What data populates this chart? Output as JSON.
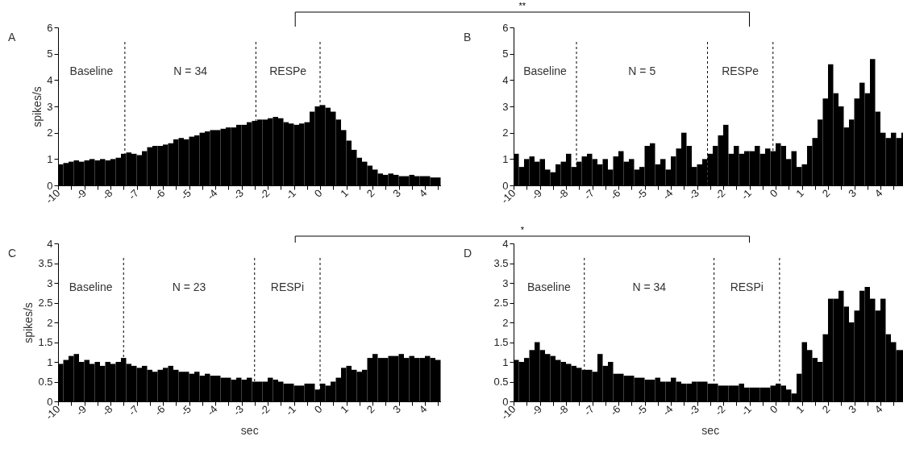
{
  "chart_data": [
    {
      "type": "histogram",
      "title": "A",
      "ylabel": "spikes/s",
      "color": "#000000",
      "xlim": [
        -10,
        4.6
      ],
      "ylim": [
        0,
        6
      ],
      "yticks": [
        0,
        1,
        2,
        3,
        4,
        5,
        6
      ],
      "xticks": [
        -10,
        {
          "value": -9.5,
          "label": null
        },
        -9,
        {
          "value": -8.5,
          "label": null
        },
        -8,
        {
          "value": -7.5,
          "label": null
        },
        -7,
        {
          "value": -6.5,
          "label": null
        },
        -6,
        {
          "value": -5.5,
          "label": null
        },
        -5,
        {
          "value": -4.5,
          "label": null
        },
        -4,
        {
          "value": -3.5,
          "label": null
        },
        -3,
        {
          "value": -2.5,
          "label": null
        },
        -2,
        {
          "value": -1.5,
          "label": null
        },
        -1,
        {
          "value": -0.5,
          "label": null
        },
        0,
        {
          "value": 0.5,
          "label": null
        },
        1,
        {
          "value": 1.5,
          "label": null
        },
        2,
        {
          "value": 2.5,
          "label": null
        },
        3,
        {
          "value": 3.5,
          "label": null
        },
        4,
        {
          "value": 4.5,
          "label": null
        }
      ],
      "bins": [
        -10,
        -9.8,
        -9.6,
        -9.4,
        -9.2,
        -9,
        -8.8,
        -8.6,
        -8.4,
        -8.2,
        -8,
        -7.8,
        -7.6,
        -7.4,
        -7.2,
        -7,
        -6.8,
        -6.6,
        -6.4,
        -6.2,
        -6,
        -5.8,
        -5.6,
        -5.4,
        -5.2,
        -5,
        -4.8,
        -4.6,
        -4.4,
        -4.2,
        -4,
        -3.8,
        -3.6,
        -3.4,
        -3.2,
        -3,
        -2.8,
        -2.6,
        -2.4,
        -2.2,
        -2,
        -1.8,
        -1.6,
        -1.4,
        -1.2,
        -1,
        -0.8,
        -0.6,
        -0.4,
        -0.2,
        0,
        0.2,
        0.4,
        0.6,
        0.8,
        1,
        1.2,
        1.4,
        1.6,
        1.8,
        2,
        2.2,
        2.4,
        2.6,
        2.8,
        3,
        3.2,
        3.4,
        3.6,
        3.8,
        4,
        4.2,
        4.4,
        4.6
      ],
      "values": [
        0.8,
        0.85,
        0.9,
        0.95,
        0.9,
        0.95,
        1.0,
        0.95,
        1.0,
        0.95,
        1.0,
        1.05,
        1.2,
        1.25,
        1.2,
        1.15,
        1.3,
        1.45,
        1.5,
        1.5,
        1.55,
        1.6,
        1.75,
        1.8,
        1.75,
        1.85,
        1.9,
        2.0,
        2.05,
        2.1,
        2.1,
        2.15,
        2.2,
        2.2,
        2.3,
        2.3,
        2.4,
        2.45,
        2.5,
        2.5,
        2.55,
        2.6,
        2.55,
        2.4,
        2.35,
        2.3,
        2.35,
        2.4,
        2.8,
        3.0,
        3.05,
        2.95,
        2.8,
        2.5,
        2.1,
        1.7,
        1.35,
        1.05,
        0.9,
        0.75,
        0.6,
        0.45,
        0.4,
        0.45,
        0.4,
        0.35,
        0.35,
        0.4,
        0.35,
        0.35,
        0.35,
        0.3,
        0.3
      ],
      "ref_lines": [
        {
          "axis": "x",
          "value": -7.45,
          "line_style": "dashed"
        },
        {
          "axis": "x",
          "value": -2.45,
          "line_style": "dashed"
        },
        {
          "axis": "x",
          "value": 0,
          "line_style": "dashed"
        }
      ],
      "annotations": [
        "Baseline",
        "N = 34",
        "RESPe",
        "**"
      ]
    },
    {
      "type": "histogram",
      "title": "B",
      "color": "#000000",
      "xlim": [
        -10,
        5
      ],
      "ylim": [
        0,
        6
      ],
      "yticks": [
        0,
        1,
        2,
        3,
        4,
        5,
        6
      ],
      "xticks": [
        -10,
        {
          "value": -9.5,
          "label": null
        },
        -9,
        {
          "value": -8.5,
          "label": null
        },
        -8,
        {
          "value": -7.5,
          "label": null
        },
        -7,
        {
          "value": -6.5,
          "label": null
        },
        -6,
        {
          "value": -5.5,
          "label": null
        },
        -5,
        {
          "value": -4.5,
          "label": null
        },
        -4,
        {
          "value": -3.5,
          "label": null
        },
        -3,
        {
          "value": -2.5,
          "label": null
        },
        -2,
        {
          "value": -1.5,
          "label": null
        },
        -1,
        {
          "value": -0.5,
          "label": null
        },
        0,
        {
          "value": 0.5,
          "label": null
        },
        1,
        {
          "value": 1.5,
          "label": null
        },
        2,
        {
          "value": 2.5,
          "label": null
        },
        3,
        {
          "value": 3.5,
          "label": null
        },
        4,
        {
          "value": 4.5,
          "label": null
        }
      ],
      "bins": [
        -10,
        -9.8,
        -9.6,
        -9.4,
        -9.2,
        -9,
        -8.8,
        -8.6,
        -8.4,
        -8.2,
        -8,
        -7.8,
        -7.6,
        -7.4,
        -7.2,
        -7,
        -6.8,
        -6.6,
        -6.4,
        -6.2,
        -6,
        -5.8,
        -5.6,
        -5.4,
        -5.2,
        -5,
        -4.8,
        -4.6,
        -4.4,
        -4.2,
        -4,
        -3.8,
        -3.6,
        -3.4,
        -3.2,
        -3,
        -2.8,
        -2.6,
        -2.4,
        -2.2,
        -2,
        -1.8,
        -1.6,
        -1.4,
        -1.2,
        -1,
        -0.8,
        -0.6,
        -0.4,
        -0.2,
        0,
        0.2,
        0.4,
        0.6,
        0.8,
        1,
        1.2,
        1.4,
        1.6,
        1.8,
        2,
        2.2,
        2.4,
        2.6,
        2.8,
        3,
        3.2,
        3.4,
        3.6,
        3.8,
        4,
        4.2,
        4.4,
        4.6,
        4.8,
        5
      ],
      "values": [
        1.2,
        0.7,
        1.0,
        1.1,
        0.9,
        1.0,
        0.6,
        0.5,
        0.8,
        0.9,
        1.2,
        0.7,
        0.9,
        1.1,
        1.2,
        1.0,
        0.8,
        1.0,
        0.6,
        1.1,
        1.3,
        0.9,
        1.0,
        0.6,
        0.7,
        1.5,
        1.6,
        0.8,
        1.0,
        0.6,
        1.1,
        1.4,
        2.0,
        1.5,
        0.7,
        0.8,
        1.0,
        1.2,
        1.5,
        1.9,
        2.3,
        1.2,
        1.5,
        1.2,
        1.3,
        1.3,
        1.5,
        1.2,
        1.4,
        1.3,
        1.6,
        1.5,
        1.0,
        1.3,
        0.7,
        0.8,
        1.5,
        1.8,
        2.5,
        3.3,
        4.6,
        3.5,
        3.0,
        2.2,
        2.5,
        3.3,
        3.9,
        3.5,
        4.8,
        2.8,
        2.0,
        1.8,
        2.0,
        1.8,
        2.0
      ],
      "ref_lines": [
        {
          "axis": "x",
          "value": -7.6,
          "line_style": "dashed"
        },
        {
          "axis": "x",
          "value": -2.6,
          "line_style": "dashed"
        },
        {
          "axis": "x",
          "value": -0.1,
          "line_style": "dashed"
        }
      ],
      "annotations": [
        "Baseline",
        "N = 5",
        "RESPe"
      ]
    },
    {
      "type": "histogram",
      "title": "C",
      "ylabel": "spikes/s",
      "xlabel": "sec",
      "color": "#000000",
      "xlim": [
        -10,
        4.6
      ],
      "ylim": [
        0,
        4
      ],
      "yticks": [
        0,
        0.5,
        1,
        1.5,
        2,
        2.5,
        3,
        3.5,
        4
      ],
      "xticks": [
        -10,
        {
          "value": -9.5,
          "label": null
        },
        -9,
        {
          "value": -8.5,
          "label": null
        },
        -8,
        {
          "value": -7.5,
          "label": null
        },
        -7,
        {
          "value": -6.5,
          "label": null
        },
        -6,
        {
          "value": -5.5,
          "label": null
        },
        -5,
        {
          "value": -4.5,
          "label": null
        },
        -4,
        {
          "value": -3.5,
          "label": null
        },
        -3,
        {
          "value": -2.5,
          "label": null
        },
        -2,
        {
          "value": -1.5,
          "label": null
        },
        -1,
        {
          "value": -0.5,
          "label": null
        },
        0,
        {
          "value": 0.5,
          "label": null
        },
        1,
        {
          "value": 1.5,
          "label": null
        },
        2,
        {
          "value": 2.5,
          "label": null
        },
        3,
        {
          "value": 3.5,
          "label": null
        },
        4,
        {
          "value": 4.5,
          "label": null
        }
      ],
      "bins": [
        -10,
        -9.8,
        -9.6,
        -9.4,
        -9.2,
        -9,
        -8.8,
        -8.6,
        -8.4,
        -8.2,
        -8,
        -7.8,
        -7.6,
        -7.4,
        -7.2,
        -7,
        -6.8,
        -6.6,
        -6.4,
        -6.2,
        -6,
        -5.8,
        -5.6,
        -5.4,
        -5.2,
        -5,
        -4.8,
        -4.6,
        -4.4,
        -4.2,
        -4,
        -3.8,
        -3.6,
        -3.4,
        -3.2,
        -3,
        -2.8,
        -2.6,
        -2.4,
        -2.2,
        -2,
        -1.8,
        -1.6,
        -1.4,
        -1.2,
        -1,
        -0.8,
        -0.6,
        -0.4,
        -0.2,
        0,
        0.2,
        0.4,
        0.6,
        0.8,
        1,
        1.2,
        1.4,
        1.6,
        1.8,
        2,
        2.2,
        2.4,
        2.6,
        2.8,
        3,
        3.2,
        3.4,
        3.6,
        3.8,
        4,
        4.2,
        4.4,
        4.6
      ],
      "values": [
        0.95,
        1.05,
        1.15,
        1.2,
        1.0,
        1.05,
        0.95,
        1.0,
        0.9,
        1.0,
        0.95,
        1.0,
        1.1,
        0.95,
        0.9,
        0.85,
        0.9,
        0.8,
        0.75,
        0.8,
        0.85,
        0.9,
        0.8,
        0.75,
        0.75,
        0.7,
        0.75,
        0.65,
        0.7,
        0.65,
        0.65,
        0.6,
        0.6,
        0.55,
        0.6,
        0.55,
        0.6,
        0.5,
        0.5,
        0.5,
        0.6,
        0.55,
        0.5,
        0.45,
        0.45,
        0.4,
        0.4,
        0.45,
        0.45,
        0.3,
        0.45,
        0.4,
        0.5,
        0.6,
        0.85,
        0.9,
        0.8,
        0.75,
        0.8,
        1.1,
        1.2,
        1.1,
        1.1,
        1.15,
        1.15,
        1.2,
        1.1,
        1.15,
        1.1,
        1.1,
        1.15,
        1.1,
        1.05
      ],
      "ref_lines": [
        {
          "axis": "x",
          "value": -7.5,
          "line_style": "dashed"
        },
        {
          "axis": "x",
          "value": -2.5,
          "line_style": "dashed"
        },
        {
          "axis": "x",
          "value": 0,
          "line_style": "dashed"
        }
      ],
      "annotations": [
        "Baseline",
        "N = 23",
        "RESPi",
        "*"
      ]
    },
    {
      "type": "histogram",
      "title": "D",
      "xlabel": "sec",
      "color": "#000000",
      "xlim": [
        -10,
        5
      ],
      "ylim": [
        0,
        4
      ],
      "yticks": [
        0,
        0.5,
        1,
        1.5,
        2,
        2.5,
        3,
        3.5,
        4
      ],
      "xticks": [
        -10,
        {
          "value": -9.5,
          "label": null
        },
        -9,
        {
          "value": -8.5,
          "label": null
        },
        -8,
        {
          "value": -7.5,
          "label": null
        },
        -7,
        {
          "value": -6.5,
          "label": null
        },
        -6,
        {
          "value": -5.5,
          "label": null
        },
        -5,
        {
          "value": -4.5,
          "label": null
        },
        -4,
        {
          "value": -3.5,
          "label": null
        },
        -3,
        {
          "value": -2.5,
          "label": null
        },
        -2,
        {
          "value": -1.5,
          "label": null
        },
        -1,
        {
          "value": -0.5,
          "label": null
        },
        0,
        {
          "value": 0.5,
          "label": null
        },
        1,
        {
          "value": 1.5,
          "label": null
        },
        2,
        {
          "value": 2.5,
          "label": null
        },
        3,
        {
          "value": 3.5,
          "label": null
        },
        4,
        {
          "value": 4.5,
          "label": null
        }
      ],
      "bins": [
        -10,
        -9.8,
        -9.6,
        -9.4,
        -9.2,
        -9,
        -8.8,
        -8.6,
        -8.4,
        -8.2,
        -8,
        -7.8,
        -7.6,
        -7.4,
        -7.2,
        -7,
        -6.8,
        -6.6,
        -6.4,
        -6.2,
        -6,
        -5.8,
        -5.6,
        -5.4,
        -5.2,
        -5,
        -4.8,
        -4.6,
        -4.4,
        -4.2,
        -4,
        -3.8,
        -3.6,
        -3.4,
        -3.2,
        -3,
        -2.8,
        -2.6,
        -2.4,
        -2.2,
        -2,
        -1.8,
        -1.6,
        -1.4,
        -1.2,
        -1,
        -0.8,
        -0.6,
        -0.4,
        -0.2,
        0,
        0.2,
        0.4,
        0.6,
        0.8,
        1,
        1.2,
        1.4,
        1.6,
        1.8,
        2,
        2.2,
        2.4,
        2.6,
        2.8,
        3,
        3.2,
        3.4,
        3.6,
        3.8,
        4,
        4.2,
        4.4,
        4.6,
        4.8,
        5
      ],
      "values": [
        1.05,
        1.0,
        1.1,
        1.3,
        1.5,
        1.3,
        1.2,
        1.15,
        1.05,
        1.0,
        0.95,
        0.9,
        0.85,
        0.8,
        0.8,
        0.75,
        1.2,
        0.9,
        1.0,
        0.7,
        0.7,
        0.65,
        0.65,
        0.6,
        0.6,
        0.55,
        0.55,
        0.6,
        0.5,
        0.5,
        0.6,
        0.5,
        0.45,
        0.45,
        0.5,
        0.5,
        0.5,
        0.45,
        0.45,
        0.4,
        0.4,
        0.4,
        0.4,
        0.45,
        0.35,
        0.35,
        0.35,
        0.35,
        0.35,
        0.4,
        0.45,
        0.4,
        0.3,
        0.2,
        0.7,
        1.5,
        1.3,
        1.1,
        1.0,
        1.7,
        2.6,
        2.6,
        2.8,
        2.4,
        2.0,
        2.3,
        2.8,
        2.9,
        2.6,
        2.3,
        2.6,
        1.7,
        1.5,
        1.3,
        1.3
      ],
      "ref_lines": [
        {
          "axis": "x",
          "value": -7.3,
          "line_style": "dashed"
        },
        {
          "axis": "x",
          "value": -2.35,
          "line_style": "dashed"
        },
        {
          "axis": "x",
          "value": 0.15,
          "line_style": "dashed"
        }
      ],
      "annotations": [
        "Baseline",
        "N = 34",
        "RESPi"
      ]
    }
  ]
}
